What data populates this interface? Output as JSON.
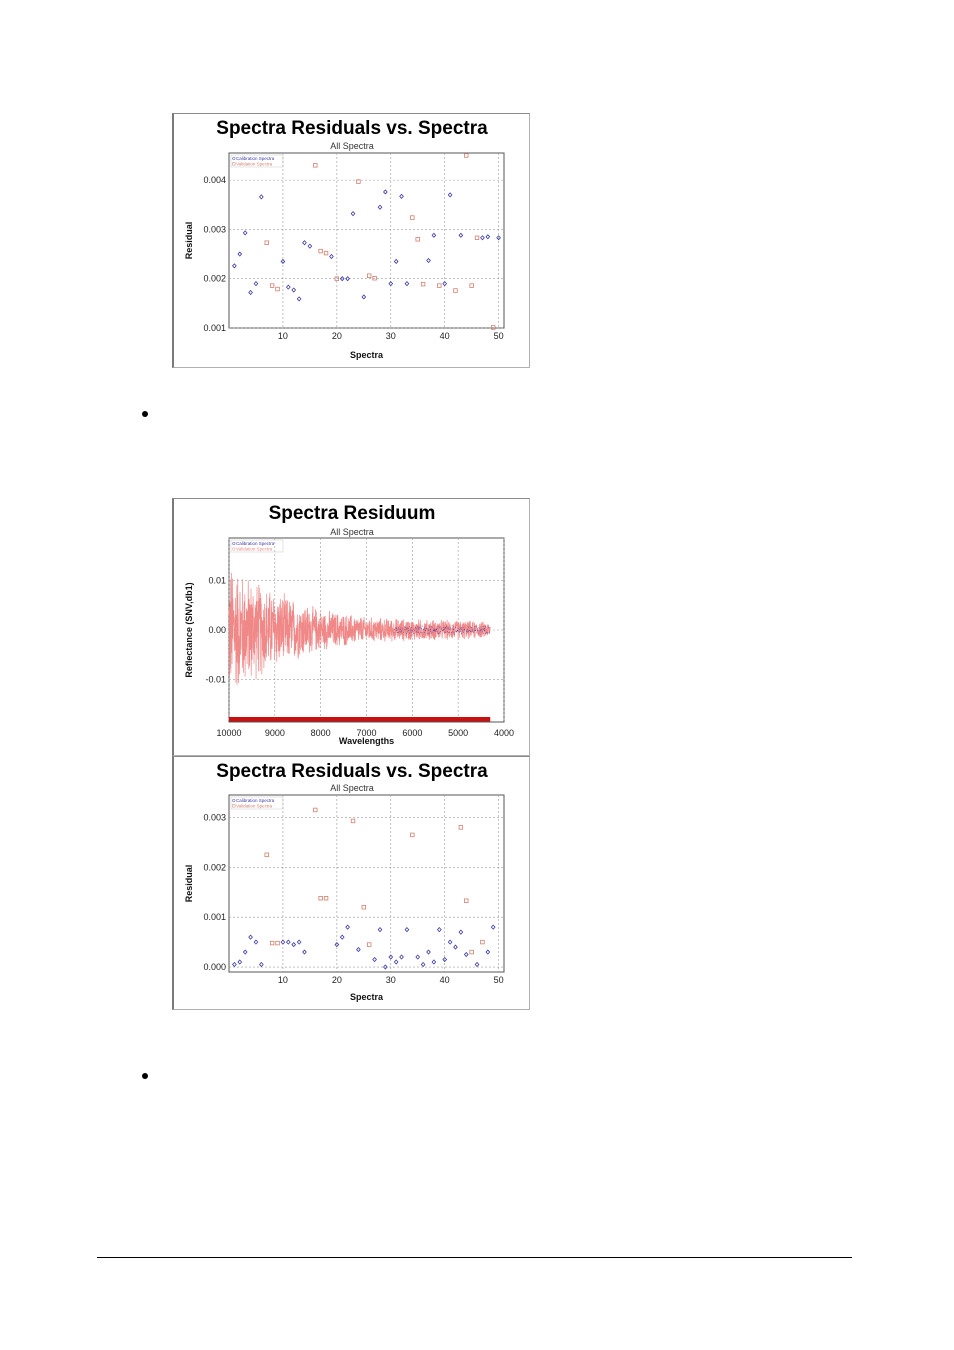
{
  "chart_data": [
    {
      "id": "chart1",
      "type": "scatter",
      "title": "Spectra Residuals vs. Spectra",
      "subtitle": "All Spectra",
      "xlabel": "Spectra",
      "ylabel": "Residual",
      "xlim": [
        0,
        51
      ],
      "ylim": [
        0.001,
        0.00455
      ],
      "xticks": [
        10,
        20,
        30,
        40,
        50
      ],
      "yticks": [
        0.001,
        0.002,
        0.003,
        0.004
      ],
      "ytick_labels": [
        "0.001",
        "0.002",
        "0.003",
        "0.004"
      ],
      "grid": true,
      "legend_position": "top-left",
      "series": [
        {
          "name": "Calibration Spectra",
          "marker": "diamond",
          "color": "#3a3aa8",
          "x": [
            1,
            2,
            3,
            4,
            5,
            6,
            10,
            11,
            12,
            13,
            14,
            15,
            19,
            21,
            22,
            23,
            25,
            28,
            29,
            30,
            31,
            32,
            33,
            37,
            38,
            40,
            41,
            43,
            47,
            48,
            50
          ],
          "y": [
            0.00226,
            0.0025,
            0.00293,
            0.00172,
            0.0019,
            0.00366,
            0.00235,
            0.00183,
            0.00177,
            0.00159,
            0.00273,
            0.00266,
            0.00245,
            0.002,
            0.002,
            0.00332,
            0.00163,
            0.00345,
            0.00376,
            0.0019,
            0.00235,
            0.00367,
            0.0019,
            0.00237,
            0.00288,
            0.0019,
            0.0037,
            0.00288,
            0.00283,
            0.00285,
            0.00283
          ]
        },
        {
          "name": "Validation Spectra",
          "marker": "square",
          "color": "#d08070",
          "x": [
            7,
            8,
            9,
            16,
            17,
            18,
            20,
            24,
            26,
            27,
            34,
            35,
            36,
            39,
            42,
            44,
            45,
            46,
            49
          ],
          "y": [
            0.00273,
            0.00186,
            0.00179,
            0.0043,
            0.00256,
            0.00252,
            0.002,
            0.00397,
            0.00206,
            0.00201,
            0.00324,
            0.0028,
            0.00189,
            0.00186,
            0.00176,
            0.0045,
            0.00186,
            0.00283,
            0.00101
          ]
        }
      ]
    },
    {
      "id": "chart2",
      "type": "line",
      "title": "Spectra Residuum",
      "subtitle": "All Spectra",
      "xlabel": "Wavelengths",
      "ylabel": "Reflectance (SNV,db1)",
      "xlim": [
        10000,
        4000
      ],
      "ylim": [
        -0.0185,
        0.0185
      ],
      "xticks": [
        10000,
        9000,
        8000,
        7000,
        6000,
        5000,
        4000
      ],
      "xtick_labels": [
        "10000",
        "9000",
        "8000",
        "7000",
        "6000",
        "5000",
        "4000"
      ],
      "yticks": [
        0.01,
        0.0,
        -0.01
      ],
      "ytick_labels": [
        "0.01",
        "0.00",
        "-0.01"
      ],
      "grid": true,
      "legend_position": "top-left",
      "x_start": 10000,
      "x_end": 4300,
      "envelope": [
        {
          "x": 10000,
          "amp": 0.015
        },
        {
          "x": 9700,
          "amp": 0.0125
        },
        {
          "x": 9000,
          "amp": 0.0085
        },
        {
          "x": 8000,
          "amp": 0.0045
        },
        {
          "x": 7000,
          "amp": 0.0028
        },
        {
          "x": 6000,
          "amp": 0.0024
        },
        {
          "x": 5000,
          "amp": 0.0022
        },
        {
          "x": 4300,
          "amp": 0.0017
        }
      ],
      "series": [
        {
          "name": "Calibration Spectra",
          "color": "#3a3aa8"
        },
        {
          "name": "Validation Spectra",
          "color": "#f08888"
        }
      ],
      "baseline_band_color": "#c81010"
    },
    {
      "id": "chart3",
      "type": "scatter",
      "title": "Spectra Residuals vs. Spectra",
      "subtitle": "All Spectra",
      "xlabel": "Spectra",
      "ylabel": "Residual",
      "xlim": [
        0,
        51
      ],
      "ylim": [
        -0.0001,
        0.00345
      ],
      "xticks": [
        10,
        20,
        30,
        40,
        50
      ],
      "yticks": [
        0.0,
        0.001,
        0.002,
        0.003
      ],
      "ytick_labels": [
        "0.000",
        "0.001",
        "0.002",
        "0.003"
      ],
      "grid": true,
      "legend_position": "top-left",
      "series": [
        {
          "name": "Calibration Spectra",
          "marker": "diamond",
          "color": "#3a3aa8",
          "x": [
            1,
            2,
            3,
            4,
            5,
            6,
            10,
            11,
            12,
            13,
            14,
            20,
            21,
            22,
            24,
            27,
            28,
            29,
            30,
            31,
            32,
            33,
            35,
            36,
            37,
            38,
            39,
            40,
            41,
            42,
            43,
            44,
            46,
            48,
            49
          ],
          "y": [
            5e-05,
            0.0001,
            0.0003,
            0.0006,
            0.0005,
            5e-05,
            0.0005,
            0.0005,
            0.00045,
            0.0005,
            0.0003,
            0.00045,
            0.0006,
            0.0008,
            0.00035,
            0.00015,
            0.00075,
            0.0,
            0.0002,
            0.0001,
            0.0002,
            0.00075,
            0.0002,
            5e-05,
            0.0003,
            0.0001,
            0.00075,
            0.00015,
            0.0005,
            0.0004,
            0.0007,
            0.00025,
            5e-05,
            0.0003,
            0.0008
          ]
        },
        {
          "name": "Validation Spectra",
          "marker": "square",
          "color": "#d08070",
          "x": [
            7,
            8,
            9,
            16,
            17,
            18,
            23,
            25,
            26,
            34,
            43,
            44,
            45,
            47
          ],
          "y": [
            0.00225,
            0.00048,
            0.00048,
            0.00315,
            0.00138,
            0.00138,
            0.00293,
            0.0012,
            0.00045,
            0.00265,
            0.0028,
            0.00133,
            0.0003,
            0.0005
          ]
        }
      ]
    }
  ]
}
